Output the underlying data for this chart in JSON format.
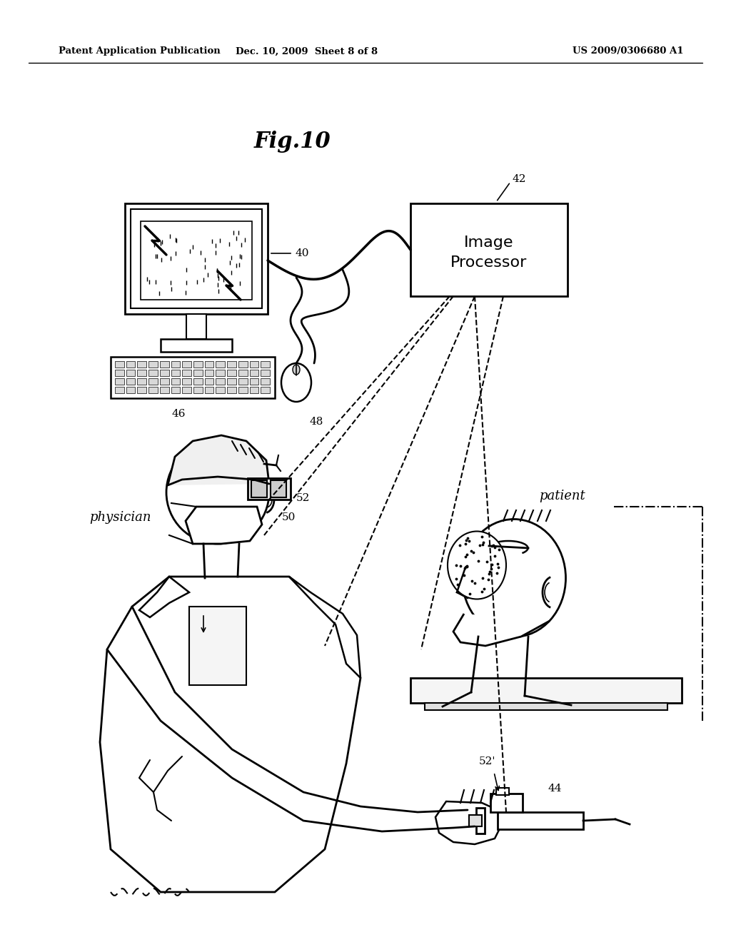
{
  "bg_color": "#ffffff",
  "header_left": "Patent Application Publication",
  "header_mid": "Dec. 10, 2009  Sheet 8 of 8",
  "header_right": "US 2009/0306680 A1",
  "fig_title": "Fig.10",
  "header_fontsize": 9.5,
  "title_fontsize": 22,
  "label_fontsize": 11,
  "physician_label_fontsize": 13,
  "patient_label_fontsize": 13
}
